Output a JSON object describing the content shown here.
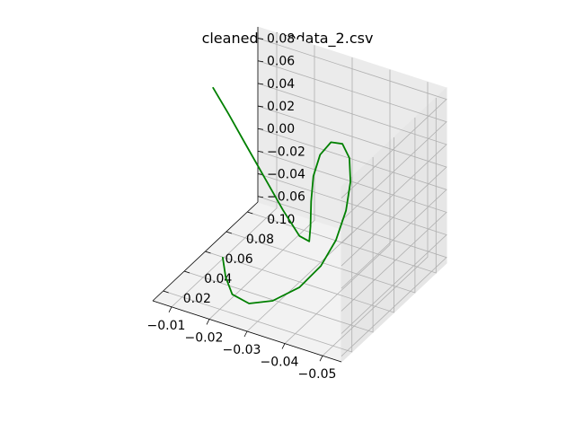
{
  "chart_data": {
    "type": "line",
    "projection": "3d",
    "title": "cleaned_divedata_2.csv",
    "xlabel": "",
    "ylabel": "",
    "zlabel": "",
    "grid": true,
    "x_ticks": [
      "−0.05",
      "−0.04",
      "−0.03",
      "−0.02",
      "−0.01"
    ],
    "y_ticks": [
      "0.02",
      "0.04",
      "0.06",
      "0.08",
      "0.10"
    ],
    "z_ticks": [
      "−0.06",
      "−0.04",
      "−0.02",
      "0.00",
      "0.02",
      "0.04",
      "0.06",
      "0.08"
    ],
    "series": [
      {
        "color": "#008000",
        "x": [
          -0.0152,
          -0.0175,
          -0.0205,
          -0.0255,
          -0.0315,
          -0.0375,
          -0.0415,
          -0.0438,
          -0.0448,
          -0.0446,
          -0.0432,
          -0.0405,
          -0.0372,
          -0.0346,
          -0.0335,
          -0.0336,
          -0.034,
          -0.0338,
          -0.0305,
          -0.0245,
          -0.0175,
          -0.0105,
          -0.0045,
          0.001
        ],
        "y": [
          0.04,
          0.0345,
          0.03,
          0.028,
          0.029,
          0.033,
          0.039,
          0.045,
          0.051,
          0.056,
          0.06,
          0.063,
          0.064,
          0.063,
          0.0605,
          0.058,
          0.056,
          0.0555,
          0.058,
          0.064,
          0.071,
          0.078,
          0.084,
          0.089
        ],
        "z": [
          -0.042,
          -0.052,
          -0.06,
          -0.061,
          -0.053,
          -0.038,
          -0.02,
          0.0,
          0.022,
          0.043,
          0.059,
          0.066,
          0.063,
          0.05,
          0.032,
          0.012,
          -0.008,
          -0.021,
          -0.022,
          -0.011,
          0.005,
          0.021,
          0.035,
          0.048
        ]
      }
    ],
    "xlim": [
      -0.055,
      -0.005
    ],
    "ylim": [
      0.01,
      0.11
    ],
    "zlim": [
      -0.065,
      0.09
    ]
  }
}
